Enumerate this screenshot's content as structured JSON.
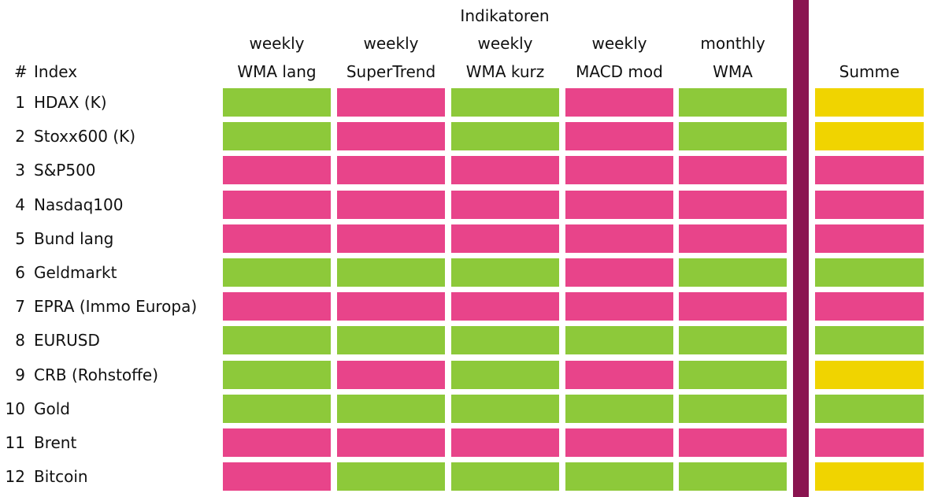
{
  "colors": {
    "green": "#8dc93a",
    "pink": "#e8448a",
    "yellow": "#f0d400",
    "divider": "#8a1450"
  },
  "header": {
    "group_title": "Indikatoren",
    "number_label": "#",
    "index_label": "Index",
    "sum_label": "Summe",
    "columns": [
      {
        "period": "weekly",
        "name": "WMA lang"
      },
      {
        "period": "weekly",
        "name": "SuperTrend"
      },
      {
        "period": "weekly",
        "name": "WMA kurz"
      },
      {
        "period": "weekly",
        "name": "MACD mod"
      },
      {
        "period": "monthly",
        "name": "WMA"
      }
    ]
  },
  "rows": [
    {
      "num": "1",
      "index": "HDAX (K)",
      "signals": [
        "green",
        "pink",
        "green",
        "pink",
        "green"
      ],
      "sum": "yellow"
    },
    {
      "num": "2",
      "index": "Stoxx600 (K)",
      "signals": [
        "green",
        "pink",
        "green",
        "pink",
        "green"
      ],
      "sum": "yellow"
    },
    {
      "num": "3",
      "index": "S&P500",
      "signals": [
        "pink",
        "pink",
        "pink",
        "pink",
        "pink"
      ],
      "sum": "pink"
    },
    {
      "num": "4",
      "index": "Nasdaq100",
      "signals": [
        "pink",
        "pink",
        "pink",
        "pink",
        "pink"
      ],
      "sum": "pink"
    },
    {
      "num": "5",
      "index": "Bund lang",
      "signals": [
        "pink",
        "pink",
        "pink",
        "pink",
        "pink"
      ],
      "sum": "pink"
    },
    {
      "num": "6",
      "index": "Geldmarkt",
      "signals": [
        "green",
        "green",
        "green",
        "pink",
        "green"
      ],
      "sum": "green"
    },
    {
      "num": "7",
      "index": "EPRA (Immo Europa)",
      "signals": [
        "pink",
        "pink",
        "pink",
        "pink",
        "pink"
      ],
      "sum": "pink"
    },
    {
      "num": "8",
      "index": "EURUSD",
      "signals": [
        "green",
        "green",
        "green",
        "green",
        "green"
      ],
      "sum": "green"
    },
    {
      "num": "9",
      "index": "CRB (Rohstoffe)",
      "signals": [
        "green",
        "pink",
        "green",
        "pink",
        "green"
      ],
      "sum": "yellow"
    },
    {
      "num": "10",
      "index": "Gold",
      "signals": [
        "green",
        "green",
        "green",
        "green",
        "green"
      ],
      "sum": "green"
    },
    {
      "num": "11",
      "index": "Brent",
      "signals": [
        "pink",
        "pink",
        "pink",
        "pink",
        "pink"
      ],
      "sum": "pink"
    },
    {
      "num": "12",
      "index": "Bitcoin",
      "signals": [
        "pink",
        "green",
        "green",
        "green",
        "green"
      ],
      "sum": "yellow"
    }
  ]
}
